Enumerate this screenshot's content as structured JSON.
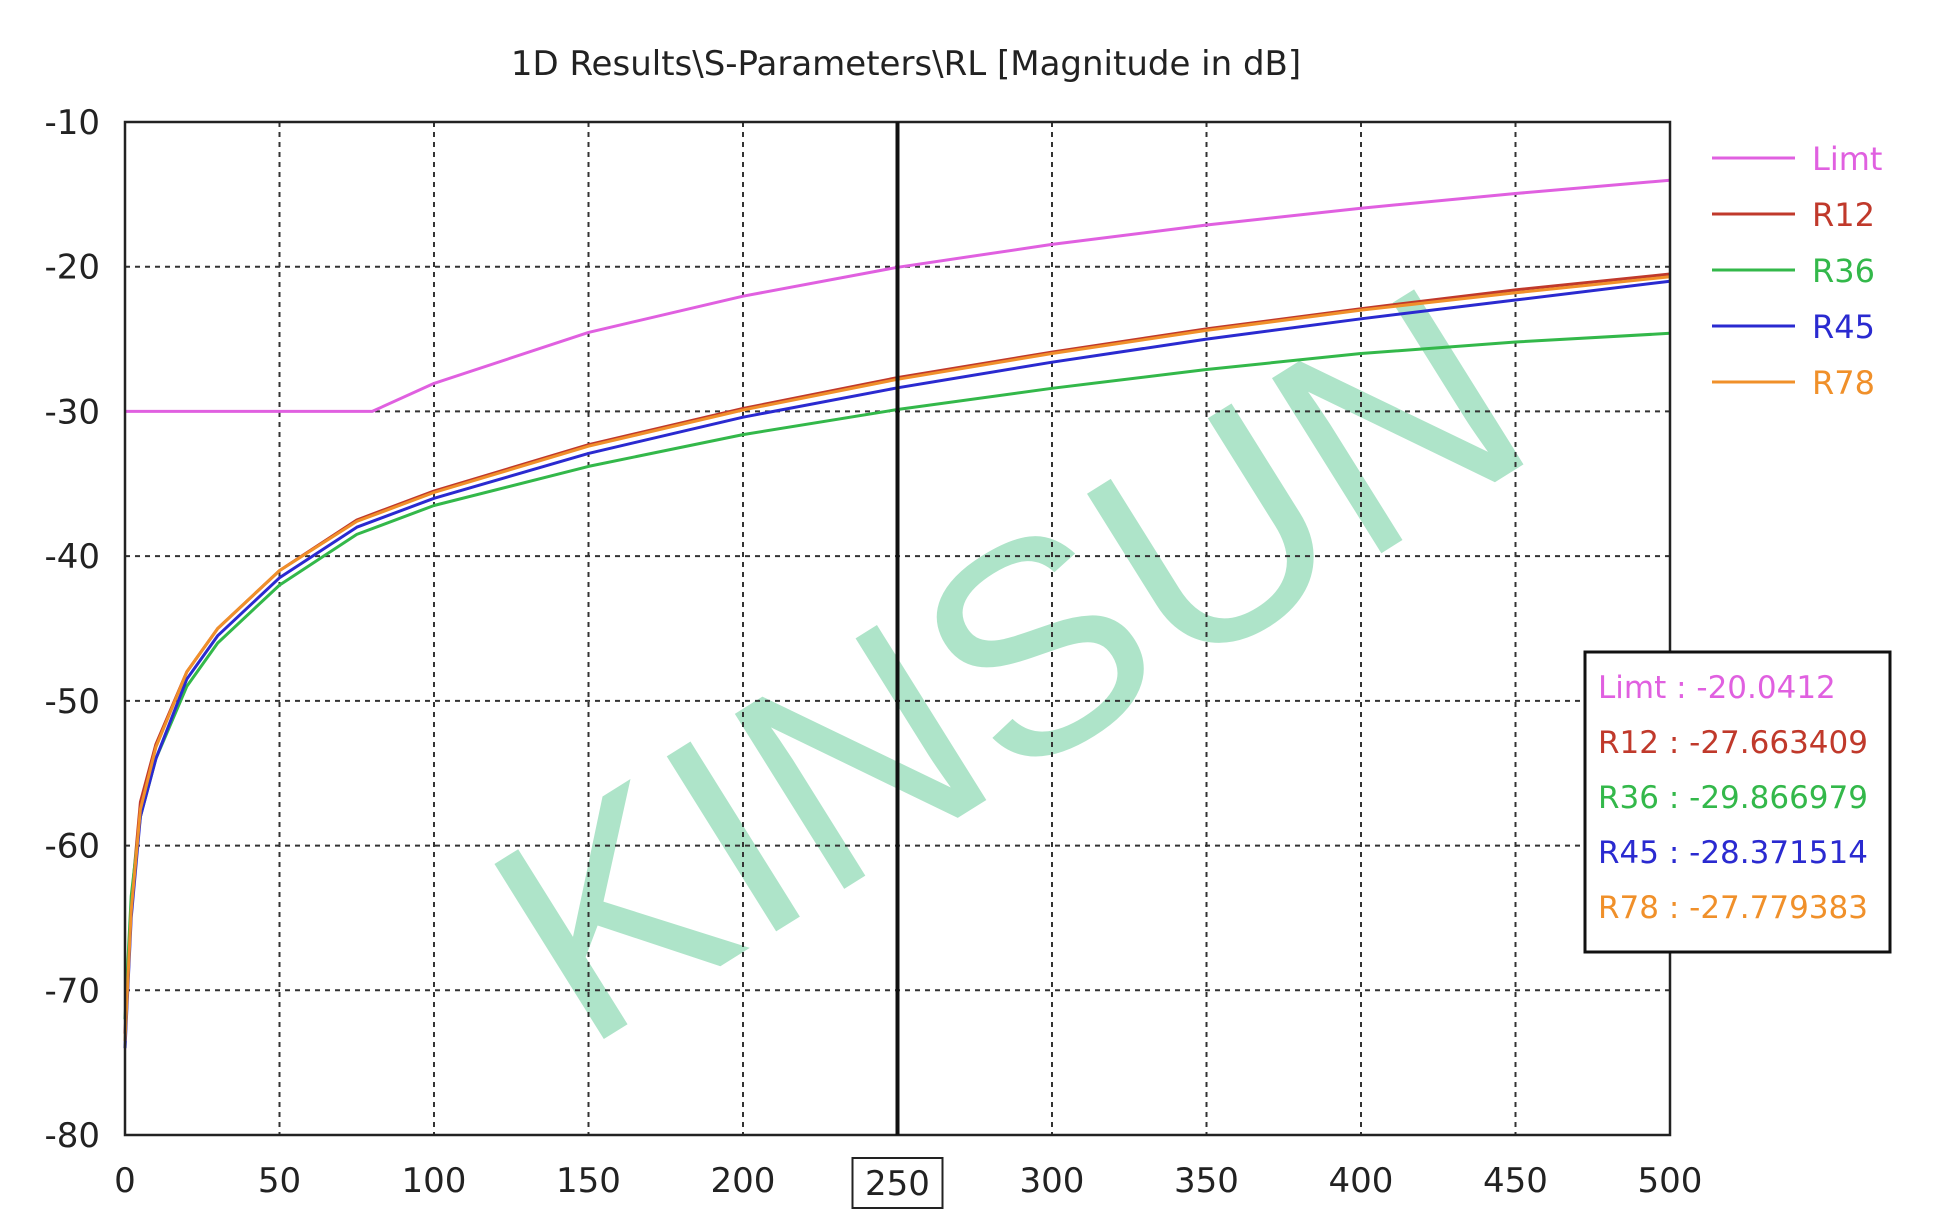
{
  "chart_data": {
    "type": "line",
    "title": "1D Results\\S-Parameters\\RL [Magnitude in dB]",
    "xlabel": "",
    "ylabel": "",
    "xlim": [
      0,
      500
    ],
    "ylim": [
      -80,
      -10
    ],
    "x_ticks": [
      "0",
      "50",
      "100",
      "150",
      "200",
      "250",
      "300",
      "350",
      "400",
      "450",
      "500"
    ],
    "y_ticks": [
      "-10",
      "-20",
      "-30",
      "-40",
      "-50",
      "-60",
      "-70",
      "-80"
    ],
    "grid": true,
    "legend_position": "right",
    "marker": {
      "x": 250,
      "x_label": "250",
      "readout": [
        {
          "series": "Limt",
          "text": "Limt : -20.0412"
        },
        {
          "series": "R12",
          "text": "R12 : -27.663409"
        },
        {
          "series": "R36",
          "text": "R36 : -29.866979"
        },
        {
          "series": "R45",
          "text": "R45 : -28.371514"
        },
        {
          "series": "R78",
          "text": "R78 : -27.779383"
        }
      ]
    },
    "watermark": "KINSUN",
    "series": [
      {
        "name": "Limt",
        "color": "#e060e0",
        "points": [
          [
            0,
            -30
          ],
          [
            80,
            -30
          ],
          [
            100,
            -28.06
          ],
          [
            150,
            -24.54
          ],
          [
            200,
            -22.04
          ],
          [
            250,
            -20.04
          ],
          [
            300,
            -18.46
          ],
          [
            350,
            -17.12
          ],
          [
            400,
            -15.96
          ],
          [
            450,
            -14.94
          ],
          [
            500,
            -14.02
          ]
        ]
      },
      {
        "name": "R12",
        "color": "#c0392b",
        "points": [
          [
            0,
            -73
          ],
          [
            2,
            -64
          ],
          [
            5,
            -57
          ],
          [
            10,
            -53
          ],
          [
            20,
            -48
          ],
          [
            30,
            -45
          ],
          [
            50,
            -41
          ],
          [
            75,
            -37.5
          ],
          [
            100,
            -35.5
          ],
          [
            150,
            -32.3
          ],
          [
            200,
            -29.8
          ],
          [
            250,
            -27.66
          ],
          [
            300,
            -25.9
          ],
          [
            350,
            -24.3
          ],
          [
            400,
            -22.9
          ],
          [
            450,
            -21.6
          ],
          [
            500,
            -20.5
          ]
        ]
      },
      {
        "name": "R36",
        "color": "#33b84a",
        "points": [
          [
            0,
            -72
          ],
          [
            2,
            -63.5
          ],
          [
            5,
            -58
          ],
          [
            10,
            -54
          ],
          [
            20,
            -49
          ],
          [
            30,
            -46
          ],
          [
            50,
            -42
          ],
          [
            75,
            -38.5
          ],
          [
            100,
            -36.5
          ],
          [
            150,
            -33.8
          ],
          [
            200,
            -31.6
          ],
          [
            250,
            -29.87
          ],
          [
            300,
            -28.4
          ],
          [
            350,
            -27.1
          ],
          [
            400,
            -26
          ],
          [
            450,
            -25.2
          ],
          [
            500,
            -24.6
          ]
        ]
      },
      {
        "name": "R45",
        "color": "#2a2ad0",
        "points": [
          [
            0,
            -74
          ],
          [
            2,
            -65
          ],
          [
            5,
            -58
          ],
          [
            10,
            -54
          ],
          [
            20,
            -48.5
          ],
          [
            30,
            -45.5
          ],
          [
            50,
            -41.5
          ],
          [
            75,
            -38
          ],
          [
            100,
            -36
          ],
          [
            150,
            -32.9
          ],
          [
            200,
            -30.4
          ],
          [
            250,
            -28.37
          ],
          [
            300,
            -26.6
          ],
          [
            350,
            -25
          ],
          [
            400,
            -23.6
          ],
          [
            450,
            -22.3
          ],
          [
            500,
            -21
          ]
        ]
      },
      {
        "name": "R78",
        "color": "#f0902a",
        "points": [
          [
            0,
            -73.5
          ],
          [
            2,
            -64.5
          ],
          [
            5,
            -57.5
          ],
          [
            10,
            -53.2
          ],
          [
            20,
            -48
          ],
          [
            30,
            -45
          ],
          [
            50,
            -41
          ],
          [
            75,
            -37.6
          ],
          [
            100,
            -35.6
          ],
          [
            150,
            -32.4
          ],
          [
            200,
            -29.9
          ],
          [
            250,
            -27.78
          ],
          [
            300,
            -26
          ],
          [
            350,
            -24.4
          ],
          [
            400,
            -23
          ],
          [
            450,
            -21.8
          ],
          [
            500,
            -20.7
          ]
        ]
      }
    ]
  }
}
